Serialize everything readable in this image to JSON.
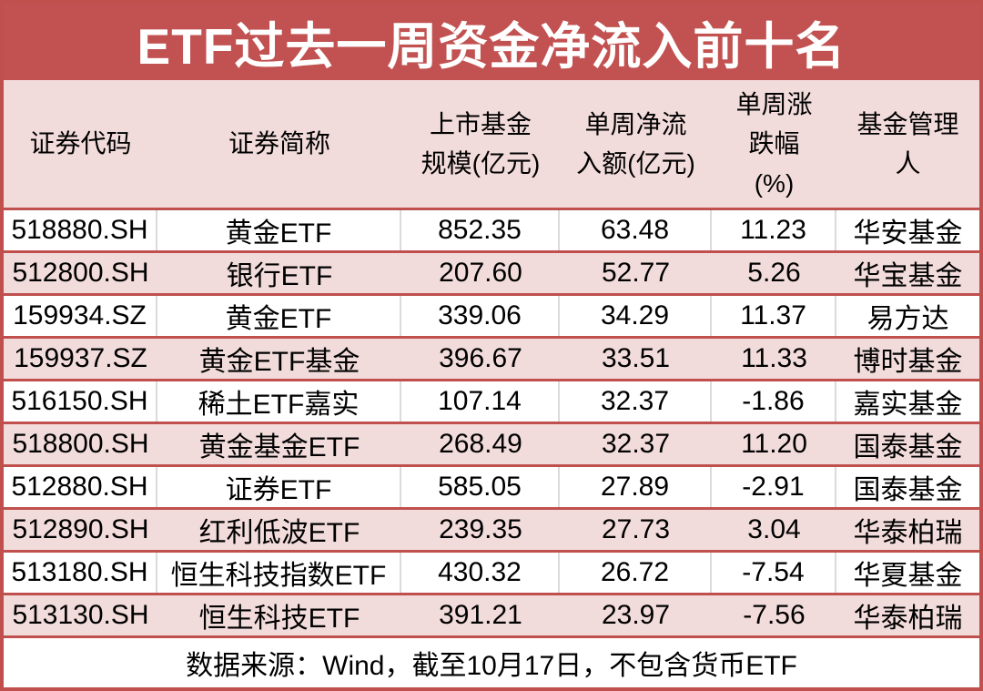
{
  "title": "ETF过去一周资金净流入前十名",
  "footer": "数据来源：Wind，截至10月17日，不包含货币ETF",
  "colors": {
    "title_background": "#C25251",
    "border_red": "#C0504D",
    "header_pink": "#F2DCDB",
    "alt_row_pink": "#F2DCDB",
    "title_text": "#FFFFFF",
    "body_text": "#000000"
  },
  "table": {
    "columns": [
      {
        "id": "code",
        "label": "证券代码"
      },
      {
        "id": "name",
        "label": "证券简称"
      },
      {
        "id": "scale",
        "label": "上市基金\n规模(亿元)"
      },
      {
        "id": "inflow",
        "label": "单周净流\n入额(亿元)"
      },
      {
        "id": "change",
        "label": "单周涨\n跌幅\n(%)"
      },
      {
        "id": "manager",
        "label": "基金管理\n人"
      }
    ]
  },
  "chart_data": {
    "type": "table",
    "title": "ETF过去一周资金净流入前十名",
    "columns": [
      "证券代码",
      "证券简称",
      "上市基金规模(亿元)",
      "单周净流入额(亿元)",
      "单周涨跌幅(%)",
      "基金管理人"
    ],
    "rows": [
      [
        "518880.SH",
        "黄金ETF",
        "852.35",
        "63.48",
        "11.23",
        "华安基金"
      ],
      [
        "512800.SH",
        "银行ETF",
        "207.60",
        "52.77",
        "5.26",
        "华宝基金"
      ],
      [
        "159934.SZ",
        "黄金ETF",
        "339.06",
        "34.29",
        "11.37",
        "易方达"
      ],
      [
        "159937.SZ",
        "黄金ETF基金",
        "396.67",
        "33.51",
        "11.33",
        "博时基金"
      ],
      [
        "516150.SH",
        "稀土ETF嘉实",
        "107.14",
        "32.37",
        "-1.86",
        "嘉实基金"
      ],
      [
        "518800.SH",
        "黄金基金ETF",
        "268.49",
        "32.37",
        "11.20",
        "国泰基金"
      ],
      [
        "512880.SH",
        "证券ETF",
        "585.05",
        "27.89",
        "-2.91",
        "国泰基金"
      ],
      [
        "512890.SH",
        "红利低波ETF",
        "239.35",
        "27.73",
        "3.04",
        "华泰柏瑞"
      ],
      [
        "513180.SH",
        "恒生科技指数ETF",
        "430.32",
        "26.72",
        "-7.54",
        "华夏基金"
      ],
      [
        "513130.SH",
        "恒生科技ETF",
        "391.21",
        "23.97",
        "-7.56",
        "华泰柏瑞"
      ]
    ],
    "note": "数据来源：Wind，截至10月17日，不包含货币ETF"
  }
}
